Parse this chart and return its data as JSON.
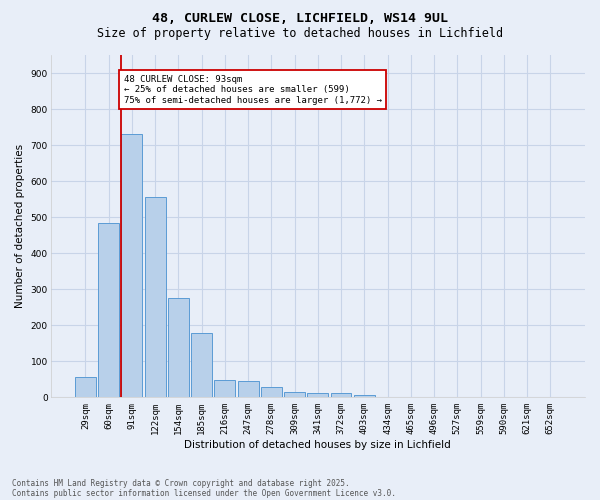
{
  "title_line1": "48, CURLEW CLOSE, LICHFIELD, WS14 9UL",
  "title_line2": "Size of property relative to detached houses in Lichfield",
  "xlabel": "Distribution of detached houses by size in Lichfield",
  "ylabel": "Number of detached properties",
  "categories": [
    "29sqm",
    "60sqm",
    "91sqm",
    "122sqm",
    "154sqm",
    "185sqm",
    "216sqm",
    "247sqm",
    "278sqm",
    "309sqm",
    "341sqm",
    "372sqm",
    "403sqm",
    "434sqm",
    "465sqm",
    "496sqm",
    "527sqm",
    "559sqm",
    "590sqm",
    "621sqm",
    "652sqm"
  ],
  "values": [
    57,
    483,
    730,
    555,
    275,
    178,
    48,
    45,
    30,
    15,
    13,
    13,
    7,
    0,
    0,
    0,
    0,
    0,
    0,
    0,
    0
  ],
  "bar_color": "#b8d0ea",
  "bar_edge_color": "#5b9bd5",
  "vline_color": "#cc0000",
  "annotation_text": "48 CURLEW CLOSE: 93sqm\n← 25% of detached houses are smaller (599)\n75% of semi-detached houses are larger (1,772) →",
  "annotation_box_color": "white",
  "annotation_box_edgecolor": "#cc0000",
  "ylim": [
    0,
    950
  ],
  "yticks": [
    0,
    100,
    200,
    300,
    400,
    500,
    600,
    700,
    800,
    900
  ],
  "grid_color": "#c8d4e8",
  "background_color": "#e8eef8",
  "footer_line1": "Contains HM Land Registry data © Crown copyright and database right 2025.",
  "footer_line2": "Contains public sector information licensed under the Open Government Licence v3.0.",
  "title_fontsize": 9.5,
  "subtitle_fontsize": 8.5,
  "axis_label_fontsize": 7.5,
  "tick_fontsize": 6.5,
  "annot_fontsize": 6.5,
  "footer_fontsize": 5.5
}
